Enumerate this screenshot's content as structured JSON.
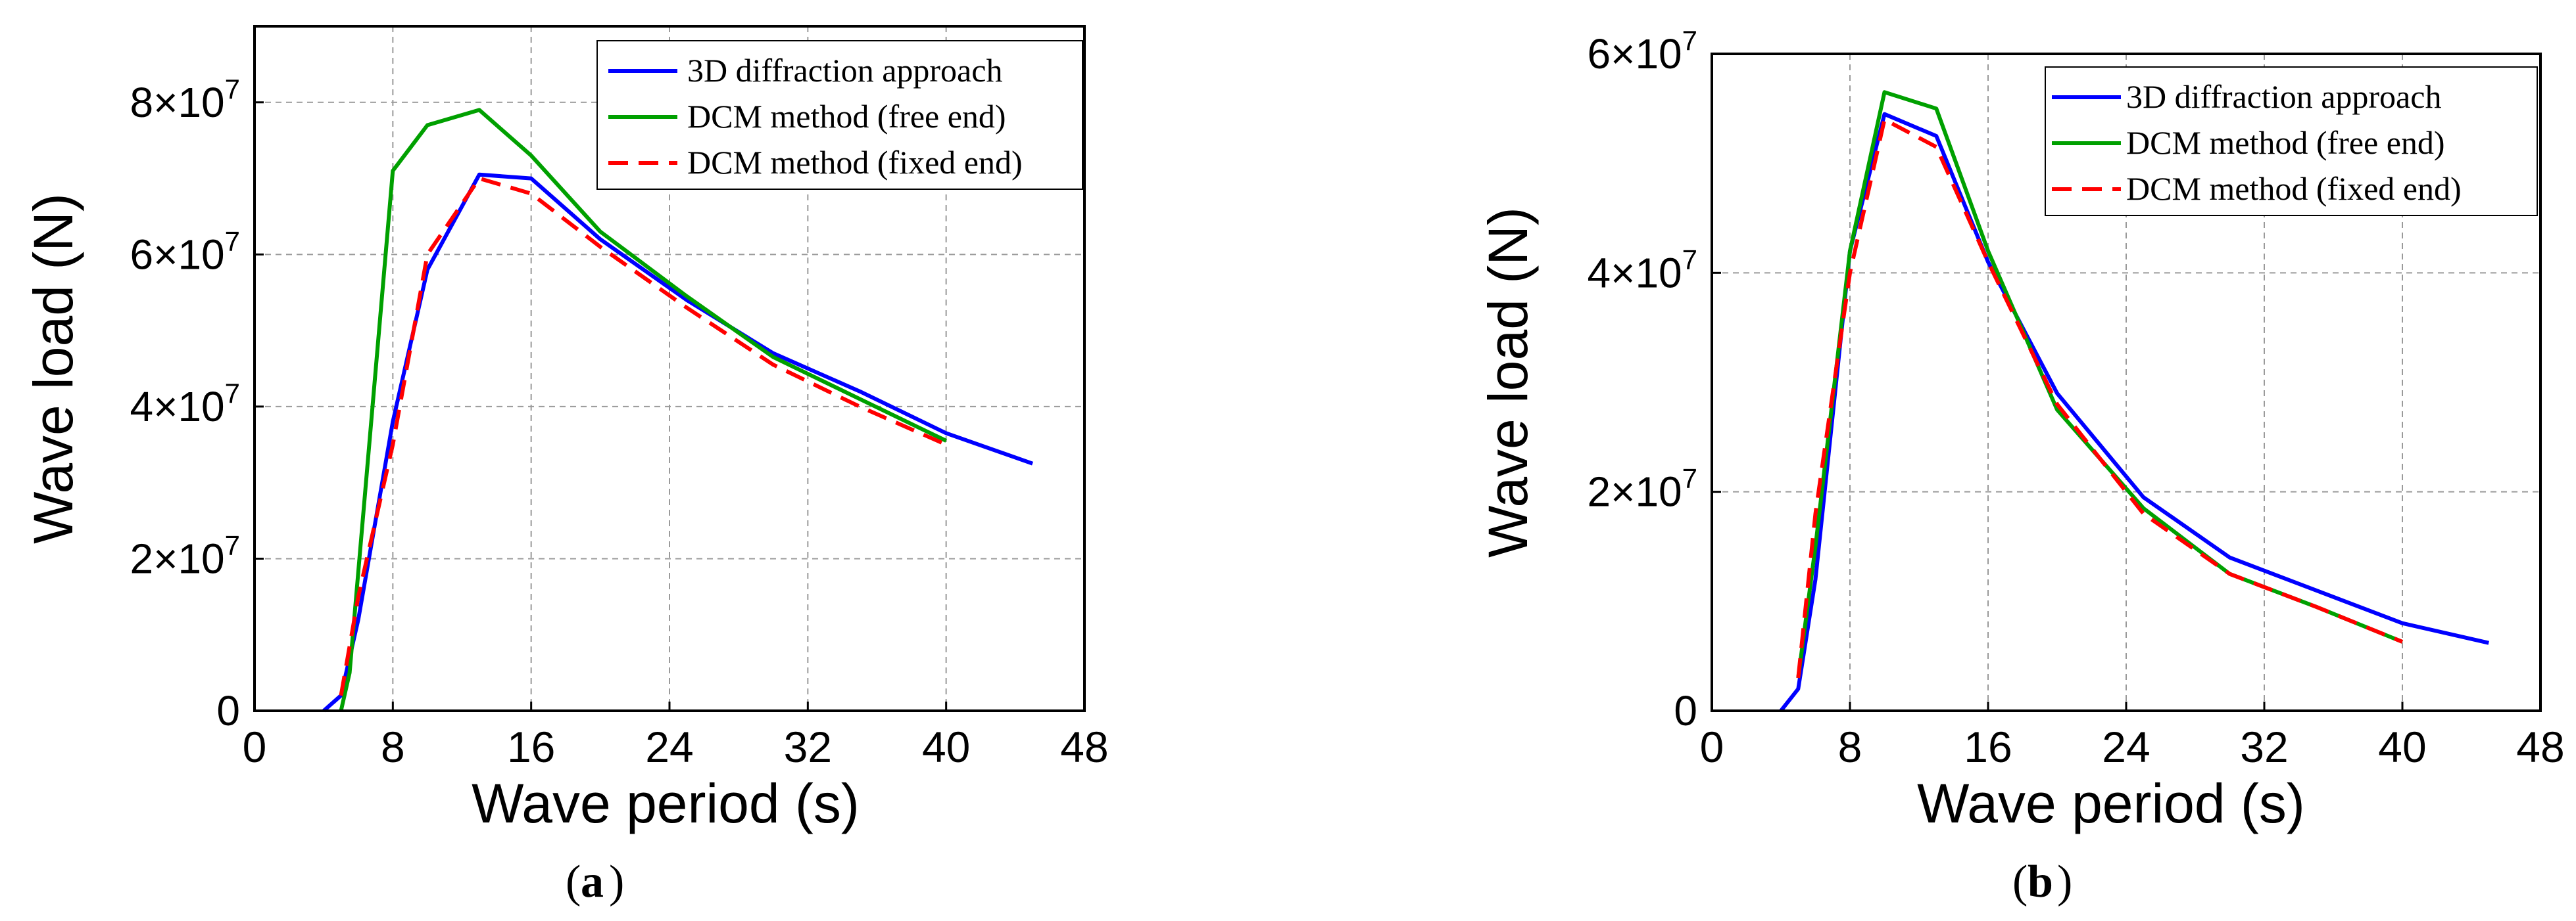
{
  "colors": {
    "series_1": "#0000ff",
    "series_2": "#00a000",
    "series_3": "#ff0000"
  },
  "chart_data": [
    {
      "id": "a",
      "type": "line",
      "caption": "a",
      "xlabel": "Wave period (s)",
      "ylabel": "Wave load (N)",
      "xlim": [
        0,
        48
      ],
      "ylim": [
        0,
        90000000
      ],
      "xticks": [
        0,
        8,
        16,
        24,
        32,
        40,
        48
      ],
      "xtick_labels": [
        "0",
        "8",
        "16",
        "24",
        "32",
        "40",
        "48"
      ],
      "yticks": [
        0,
        20000000,
        40000000,
        60000000,
        80000000
      ],
      "ytick_labels": [
        {
          "mant": "0",
          "exp": ""
        },
        {
          "mant": "2×10",
          "exp": "7"
        },
        {
          "mant": "4×10",
          "exp": "7"
        },
        {
          "mant": "6×10",
          "exp": "7"
        },
        {
          "mant": "8×10",
          "exp": "7"
        }
      ],
      "legend_position": "top-right",
      "series": [
        {
          "name": "3D diffraction approach",
          "color": "#0000ff",
          "dash": "solid",
          "x": [
            4,
            5,
            6,
            8,
            10,
            13,
            16,
            20,
            25,
            30,
            35,
            40,
            45
          ],
          "y": [
            0,
            2000000,
            12000000,
            38000000,
            58000000,
            70500000,
            70000000,
            62000000,
            54000000,
            47000000,
            42000000,
            36500000,
            32500000
          ]
        },
        {
          "name": "DCM method (free end)",
          "color": "#00a000",
          "dash": "solid",
          "x": [
            5,
            5.5,
            8,
            10,
            13,
            16,
            20,
            25,
            30,
            35,
            40
          ],
          "y": [
            0,
            5000000,
            71000000,
            77000000,
            79000000,
            73000000,
            63000000,
            54500000,
            46500000,
            41000000,
            35500000
          ]
        },
        {
          "name": "DCM method (fixed end)",
          "color": "#ff0000",
          "dash": "dashed",
          "x": [
            5,
            6,
            8,
            10,
            13,
            16,
            20,
            25,
            30,
            35,
            40
          ],
          "y": [
            2000000,
            15000000,
            35000000,
            60000000,
            70000000,
            68000000,
            61000000,
            53000000,
            45500000,
            40000000,
            35000000
          ]
        }
      ]
    },
    {
      "id": "b",
      "type": "line",
      "caption": "b",
      "xlabel": "Wave period (s)",
      "ylabel": "Wave load (N)",
      "xlim": [
        0,
        48
      ],
      "ylim": [
        0,
        60000000
      ],
      "xticks": [
        0,
        8,
        16,
        24,
        32,
        40,
        48
      ],
      "xtick_labels": [
        "0",
        "8",
        "16",
        "24",
        "32",
        "40",
        "48"
      ],
      "yticks": [
        0,
        20000000,
        40000000,
        60000000
      ],
      "ytick_labels": [
        {
          "mant": "0",
          "exp": ""
        },
        {
          "mant": "2×10",
          "exp": "7"
        },
        {
          "mant": "4×10",
          "exp": "7"
        },
        {
          "mant": "6×10",
          "exp": "7"
        }
      ],
      "legend_position": "top-right",
      "series": [
        {
          "name": "3D diffraction approach",
          "color": "#0000ff",
          "dash": "solid",
          "x": [
            4,
            5,
            6,
            8,
            10,
            13,
            16,
            20,
            25,
            30,
            35,
            40,
            45
          ],
          "y": [
            0,
            2000000,
            12000000,
            42000000,
            54500000,
            52500000,
            41000000,
            29000000,
            19500000,
            14000000,
            11000000,
            8000000,
            6200000
          ]
        },
        {
          "name": "DCM method (free end)",
          "color": "#00a000",
          "dash": "solid",
          "x": [
            5,
            6,
            8,
            10,
            13,
            16,
            20,
            25,
            30,
            35,
            40
          ],
          "y": [
            3000000,
            15000000,
            42000000,
            56500000,
            55000000,
            42000000,
            27500000,
            18500000,
            12500000,
            9500000,
            6300000
          ]
        },
        {
          "name": "DCM method (fixed end)",
          "color": "#ff0000",
          "dash": "dashed",
          "x": [
            5,
            6,
            8,
            10,
            13,
            16,
            20,
            25,
            30,
            35,
            40
          ],
          "y": [
            3000000,
            18000000,
            40000000,
            54000000,
            51500000,
            41000000,
            28000000,
            18000000,
            12500000,
            9500000,
            6300000
          ]
        }
      ]
    }
  ]
}
